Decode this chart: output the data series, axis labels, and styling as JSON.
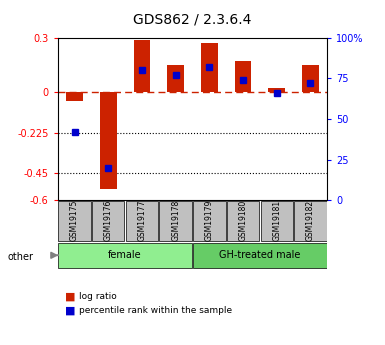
{
  "title": "GDS862 / 2.3.6.4",
  "samples": [
    "GSM19175",
    "GSM19176",
    "GSM19177",
    "GSM19178",
    "GSM19179",
    "GSM19180",
    "GSM19181",
    "GSM19182"
  ],
  "log_ratio": [
    -0.05,
    -0.54,
    0.29,
    0.15,
    0.27,
    0.17,
    0.02,
    0.15
  ],
  "percentile_rank": [
    42,
    20,
    80,
    77,
    82,
    74,
    66,
    72
  ],
  "groups": [
    {
      "label": "female",
      "start": 0,
      "end": 4,
      "color": "#90EE90"
    },
    {
      "label": "GH-treated male",
      "start": 4,
      "end": 8,
      "color": "#66CC66"
    }
  ],
  "other_label": "other",
  "ylim": [
    -0.6,
    0.3
  ],
  "yticks_left": [
    0.3,
    0,
    -0.225,
    -0.45,
    -0.6
  ],
  "yticks_left_labels": [
    "0.3",
    "0",
    "-0.225",
    "-0.45",
    "-0.6"
  ],
  "yticks_right": [
    100,
    75,
    50,
    25,
    0
  ],
  "yticks_right_labels": [
    "100%",
    "75",
    "50",
    "25",
    "0"
  ],
  "bar_color": "#CC2200",
  "dot_color": "#0000CC",
  "dashed_line_color": "#CC2200",
  "bar_width": 0.5,
  "legend_items": [
    "log ratio",
    "percentile rank within the sample"
  ]
}
